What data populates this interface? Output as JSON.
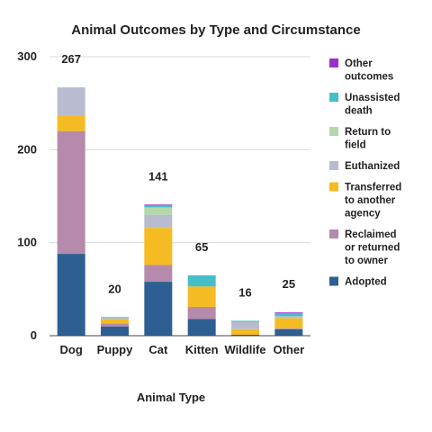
{
  "chart_data": {
    "type": "bar",
    "stacked": true,
    "title": "Animal Outcomes by Type and Circumstance",
    "xlabel": "Animal Type",
    "ylabel": "",
    "ylim": [
      0,
      300
    ],
    "yticks": [
      0,
      100,
      200,
      300
    ],
    "grid": true,
    "legend_position": "right",
    "categories": [
      "Dog",
      "Puppy",
      "Cat",
      "Kitten",
      "Wildlife",
      "Other"
    ],
    "totals": [
      267,
      20,
      141,
      65,
      16,
      25
    ],
    "series": [
      {
        "name": "Adopted",
        "color": "#2e5f93",
        "values": [
          88,
          10,
          58,
          18,
          1,
          7
        ]
      },
      {
        "name": "Reclaimed or returned to owner",
        "color": "#b58aaa",
        "values": [
          132,
          3,
          18,
          13,
          0,
          1
        ]
      },
      {
        "name": "Transferred to another agency",
        "color": "#f4bb22",
        "values": [
          17,
          5,
          40,
          22,
          6,
          11
        ]
      },
      {
        "name": "Euthanized",
        "color": "#b9bccf",
        "values": [
          30,
          1,
          14,
          0,
          8,
          2
        ]
      },
      {
        "name": "Return to field",
        "color": "#b3d8a9",
        "values": [
          0,
          0,
          8,
          0,
          0,
          0
        ]
      },
      {
        "name": "Unassisted death",
        "color": "#44bfc9",
        "values": [
          0,
          1,
          2,
          12,
          1,
          3
        ]
      },
      {
        "name": "Other outcomes",
        "color": "#9b30c8",
        "values": [
          0,
          0,
          1,
          0,
          0,
          1
        ]
      }
    ],
    "legend": [
      {
        "lines": [
          "Other",
          "outcomes"
        ],
        "color": "#9b30c8"
      },
      {
        "lines": [
          "Unassisted",
          "death"
        ],
        "color": "#44bfc9"
      },
      {
        "lines": [
          "Return to",
          "field"
        ],
        "color": "#b3d8a9"
      },
      {
        "lines": [
          "Euthanized"
        ],
        "color": "#b9bccf"
      },
      {
        "lines": [
          "Transferred",
          "to another",
          "agency"
        ],
        "color": "#f4bb22"
      },
      {
        "lines": [
          "Reclaimed",
          "or returned",
          "to owner"
        ],
        "color": "#b58aaa"
      },
      {
        "lines": [
          "Adopted"
        ],
        "color": "#2e5f93"
      }
    ]
  }
}
